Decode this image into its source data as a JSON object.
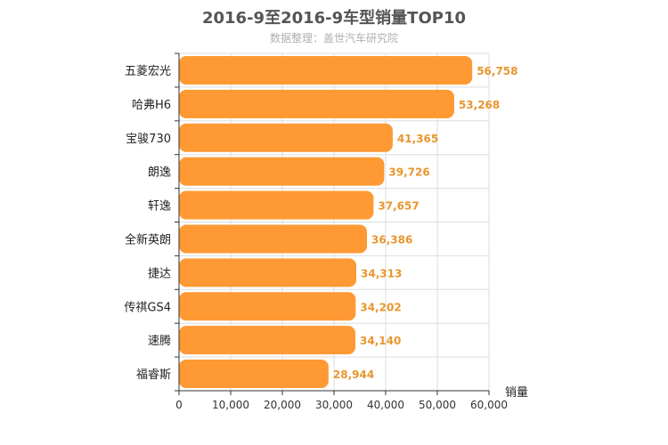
{
  "colors": {
    "bar": "#ff9933",
    "value_label": "#e8962e",
    "grid": "#dddddd",
    "axis": "#333333"
  },
  "chart_data": {
    "type": "bar",
    "orientation": "horizontal",
    "title": "2016-9至2016-9车型销量TOP10",
    "subtitle": "数据整理：盖世汽车研究院",
    "xlabel": "销量",
    "xlim": [
      0,
      60000
    ],
    "ticks": [
      0,
      10000,
      20000,
      30000,
      40000,
      50000,
      60000
    ],
    "tick_labels": [
      "0",
      "10,000",
      "20,000",
      "30,000",
      "40,000",
      "50,000",
      "60,000"
    ],
    "grid": true,
    "categories": [
      "五菱宏光",
      "哈弗H6",
      "宝骏730",
      "朗逸",
      "轩逸",
      "全新英朗",
      "捷达",
      "传祺GS4",
      "速腾",
      "福睿斯"
    ],
    "values": [
      56758,
      53268,
      41365,
      39726,
      37657,
      36386,
      34313,
      34202,
      34140,
      28944
    ],
    "value_labels": [
      "56,758",
      "53,268",
      "41,365",
      "39,726",
      "37,657",
      "36,386",
      "34,313",
      "34,202",
      "34,140",
      "28,944"
    ]
  }
}
